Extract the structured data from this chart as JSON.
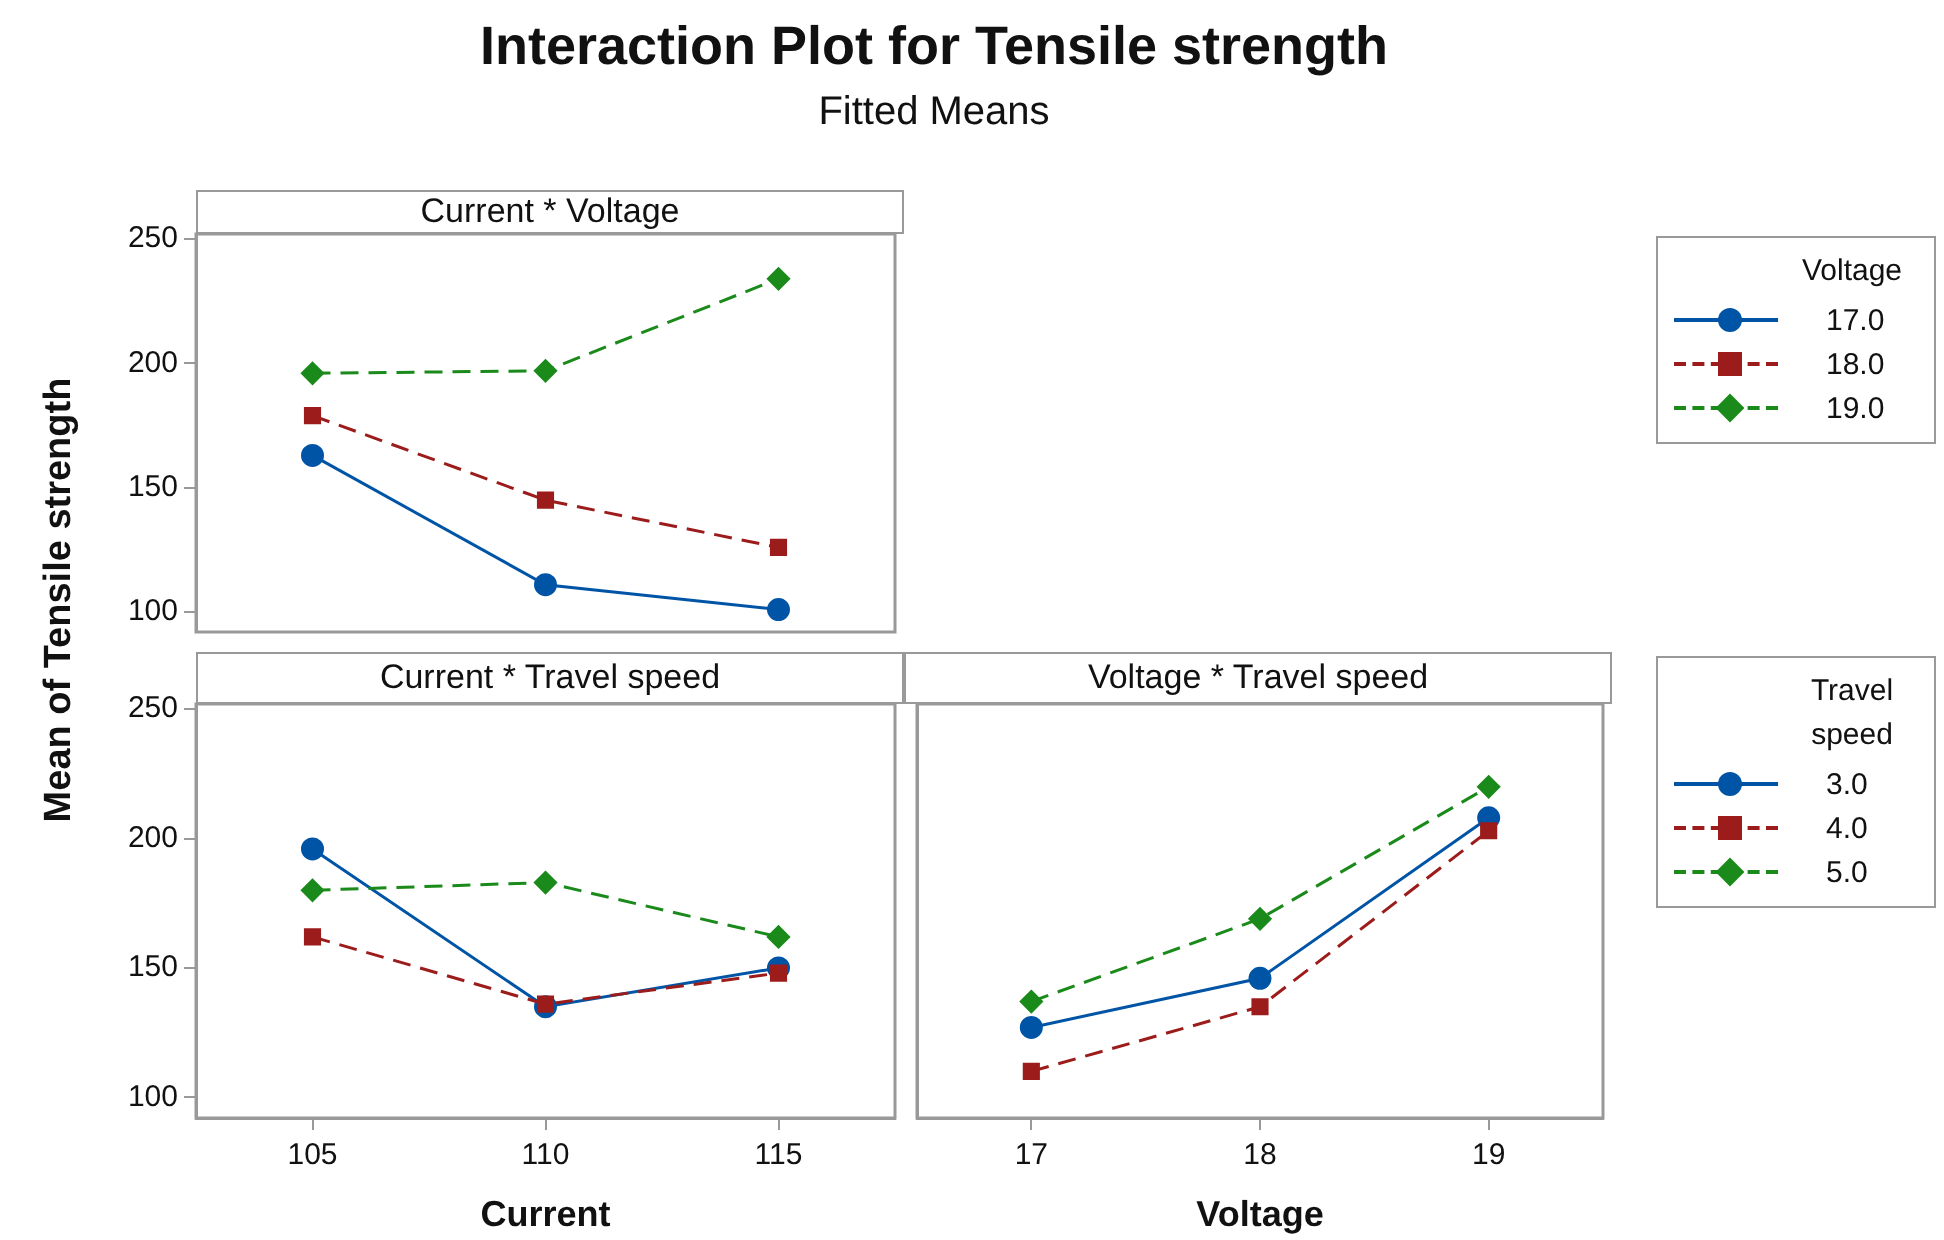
{
  "chart_data": [
    {
      "type": "line",
      "title": "Interaction Plot for Tensile strength",
      "subtitle": "Fitted Means",
      "ylabel": "Mean of Tensile strength",
      "annotations": [
        "Current * Voltage"
      ],
      "categories": [
        "105",
        "110",
        "115"
      ],
      "ylim": [
        92,
        252
      ],
      "yticks": [
        100,
        150,
        200,
        250
      ],
      "tick_labels": "y",
      "legend": "right",
      "legend_title": "Voltage",
      "series": [
        {
          "name": "17.0",
          "color": "#0054a6",
          "marker": "circle",
          "line_style": "solid",
          "values": [
            163,
            111,
            101
          ]
        },
        {
          "name": "18.0",
          "color": "#9c1c1c",
          "marker": "square",
          "line_style": "dashed",
          "values": [
            179,
            145,
            126
          ]
        },
        {
          "name": "19.0",
          "color": "#1a8a1a",
          "marker": "diamond",
          "line_style": "dashed",
          "values": [
            196,
            197,
            234
          ]
        }
      ]
    },
    {
      "type": "line",
      "annotations": [
        "Current * Travel speed"
      ],
      "xlabel": "Current",
      "categories": [
        "105",
        "110",
        "115"
      ],
      "ylim": [
        92,
        252
      ],
      "yticks": [
        100,
        150,
        200,
        250
      ],
      "series": [
        {
          "color": "#0054a6",
          "marker": "circle",
          "line_style": "solid",
          "values": [
            196,
            135,
            150
          ]
        },
        {
          "color": "#9c1c1c",
          "marker": "square",
          "line_style": "dashed",
          "values": [
            162,
            136,
            148
          ]
        },
        {
          "color": "#1a8a1a",
          "marker": "diamond",
          "line_style": "dashed",
          "values": [
            180,
            183,
            162
          ]
        }
      ]
    },
    {
      "type": "line",
      "annotations": [
        "Voltage * Travel speed"
      ],
      "xlabel": "Voltage",
      "categories": [
        "17",
        "18",
        "19"
      ],
      "ylim": [
        92,
        252
      ],
      "yticks": [
        100,
        150,
        200,
        250
      ],
      "tick_labels": "x",
      "legend": "right",
      "legend_title": "Travel speed",
      "series": [
        {
          "name": "3.0",
          "color": "#0054a6",
          "marker": "circle",
          "line_style": "solid",
          "values": [
            127,
            146,
            208
          ]
        },
        {
          "name": "4.0",
          "color": "#9c1c1c",
          "marker": "square",
          "line_style": "dashed",
          "values": [
            110,
            135,
            203
          ]
        },
        {
          "name": "5.0",
          "color": "#1a8a1a",
          "marker": "diamond",
          "line_style": "dashed",
          "values": [
            137,
            169,
            220
          ]
        }
      ]
    }
  ]
}
